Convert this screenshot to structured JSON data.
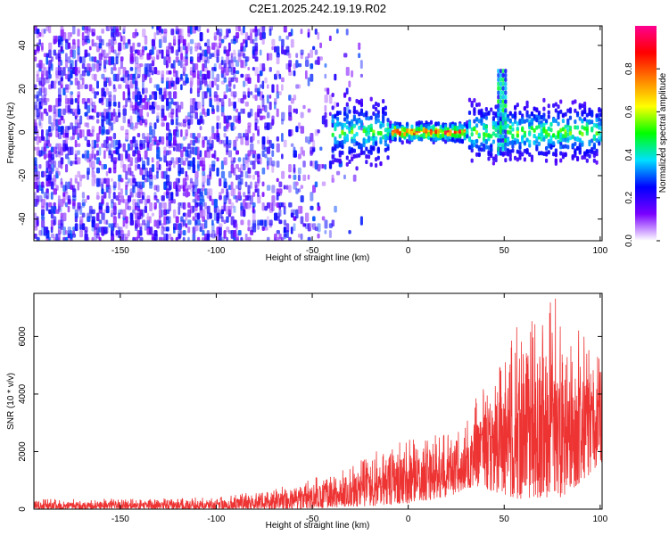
{
  "title": "C2E1.2025.242.19.19.R02",
  "chart_data": [
    {
      "type": "heatmap",
      "xlabel": "Height of straight line (km)",
      "ylabel": "Frequency (Hz)",
      "xlim": [
        -195,
        101
      ],
      "ylim": [
        -50,
        49
      ],
      "x_ticks": [
        -150,
        -100,
        -50,
        0,
        50,
        100
      ],
      "y_ticks": [
        -40,
        -20,
        0,
        20,
        40
      ],
      "colorbar": {
        "label": "Normalized spectral amplitude",
        "range": [
          0,
          1
        ],
        "ticks": [
          0.0,
          0.2,
          0.4,
          0.6,
          0.8
        ],
        "colormap": [
          "#ffffff",
          "#7a00ff",
          "#0000ff",
          "#00e0ff",
          "#00ff00",
          "#ffff00",
          "#ff8000",
          "#ff0000",
          "#ff0090"
        ]
      },
      "features": [
        {
          "x_range": [
            -195,
            -35
          ],
          "frequency_range": [
            -50,
            49
          ],
          "amplitude_range": [
            0.05,
            0.3
          ],
          "note": "diffuse noise"
        },
        {
          "x_range": [
            -40,
            30
          ],
          "frequency_center": 0,
          "amplitude_max": 0.95
        },
        {
          "x_range": [
            30,
            101
          ],
          "frequency_center": 0,
          "amplitude_max": 0.5
        },
        {
          "x": 48,
          "frequency_range": [
            -10,
            28
          ],
          "amplitude_max": 0.5
        }
      ],
      "grid": false
    },
    {
      "type": "line",
      "xlabel": "Height of straight line (km)",
      "ylabel": "SNR (10 * v/v)",
      "xlim": [
        -195,
        101
      ],
      "ylim": [
        0,
        7500
      ],
      "x_ticks": [
        -150,
        -100,
        -50,
        0,
        50,
        100
      ],
      "y_ticks": [
        0,
        2000,
        4000,
        6000
      ],
      "color": "#ee3333",
      "envelope": {
        "x": [
          -195,
          -150,
          -100,
          -80,
          -60,
          -40,
          -20,
          0,
          20,
          30,
          35,
          50,
          60,
          70,
          80,
          90,
          100
        ],
        "low": [
          0,
          0,
          0,
          0,
          0,
          50,
          100,
          200,
          400,
          700,
          800,
          500,
          300,
          400,
          400,
          800,
          1600
        ],
        "high": [
          350,
          380,
          420,
          600,
          900,
          1300,
          2000,
          2500,
          2600,
          2900,
          4300,
          5600,
          6800,
          7500,
          7300,
          6200,
          5600
        ]
      },
      "grid": false
    }
  ]
}
